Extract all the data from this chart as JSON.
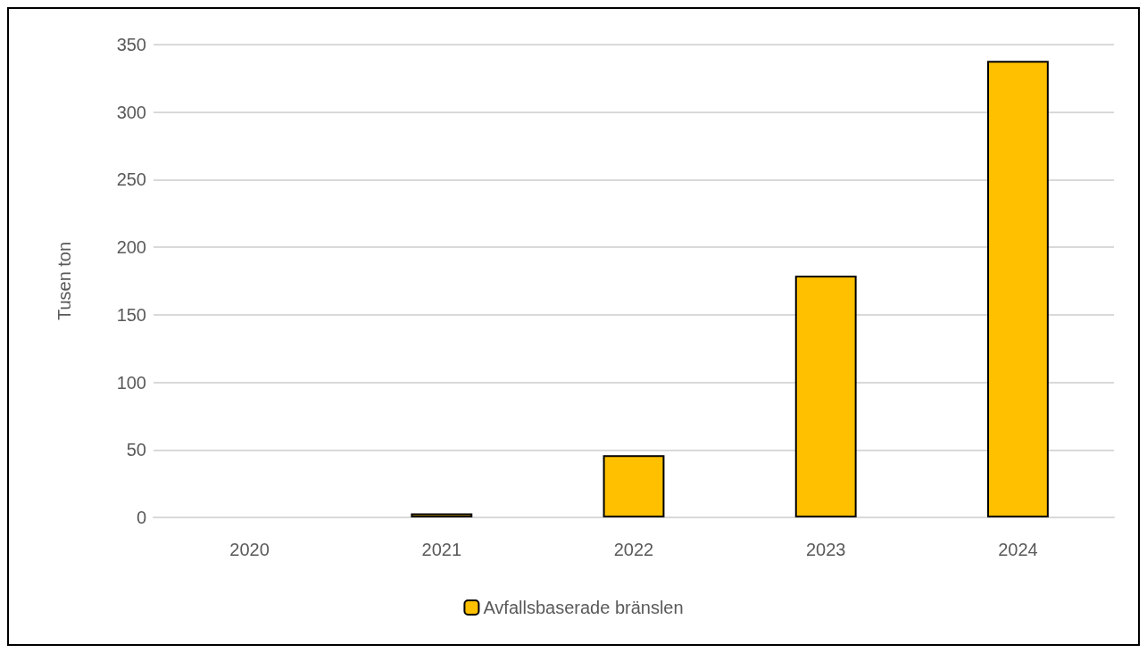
{
  "chart_data": {
    "type": "bar",
    "ylabel": "Tusen ton",
    "categories": [
      "2020",
      "2021",
      "2022",
      "2023",
      "2024"
    ],
    "series": [
      {
        "name": "Avfallsbaserade bränslen",
        "color": "#ffc000",
        "values": [
          0,
          3,
          46,
          179,
          338
        ]
      }
    ],
    "ylim": [
      0,
      350
    ],
    "yticks": [
      0,
      50,
      100,
      150,
      200,
      250,
      300,
      350
    ],
    "grid": "y",
    "legend": "bottom"
  }
}
